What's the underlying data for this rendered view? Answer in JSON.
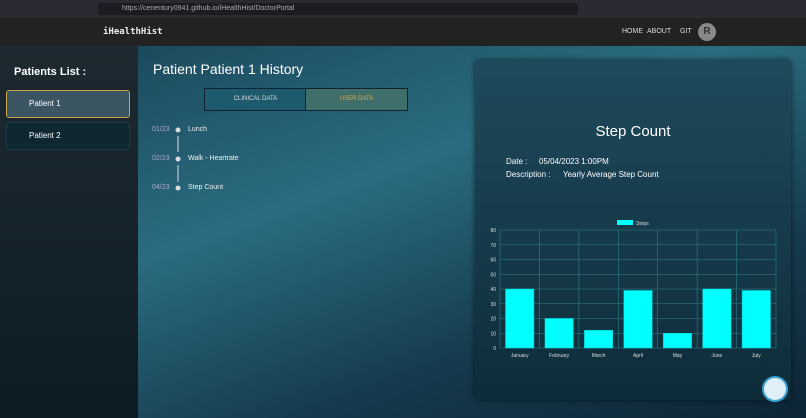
{
  "browser": {
    "url": "https://cenentury0941.github.io/iHealthHist/DoctorPortal"
  },
  "navbar": {
    "brand": "iHealthHist",
    "links": [
      "HOME",
      "ABOUT",
      "GIT"
    ],
    "avatar": "R"
  },
  "sidebar": {
    "title": "Patients List :",
    "patients": [
      "Patient 1",
      "Patient 2"
    ]
  },
  "main": {
    "title": "Patient Patient 1 History",
    "tabs": [
      "CLINICAL DATA",
      "USER DATA"
    ],
    "timeline": [
      {
        "date": "01/23",
        "label": "Lunch"
      },
      {
        "date": "02/23",
        "label": "Walk - Heartrate"
      },
      {
        "date": "04/23",
        "label": "Step Count"
      }
    ]
  },
  "panel": {
    "title": "Step Count",
    "date_label": "Date :",
    "date": "05/04/2023 1:00PM",
    "description_label": "Description :",
    "description": "Yearly Average Step Count",
    "chart": {
      "type": "bar",
      "categories": [
        "January",
        "February",
        "March",
        "April",
        "May",
        "June",
        "July"
      ],
      "series": [
        {
          "name": "Steps",
          "color": "#00ffff",
          "values": [
            40,
            20,
            12,
            39,
            10,
            40,
            39
          ]
        }
      ],
      "ylim": [
        0,
        80
      ],
      "yticks": [
        0,
        10,
        20,
        30,
        40,
        50,
        60,
        70,
        80
      ],
      "grid": true
    }
  }
}
